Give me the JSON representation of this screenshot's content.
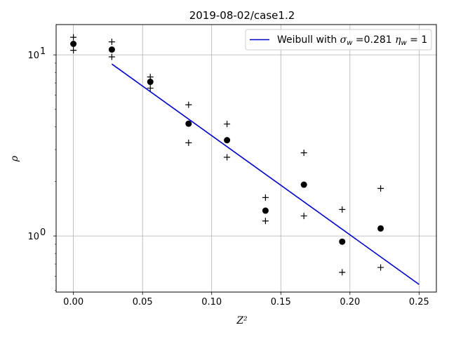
{
  "chart_data": {
    "type": "scatter",
    "title": "2019-08-02/case1.2",
    "xlabel": "Z²",
    "ylabel": "ρ",
    "y_scale": "log",
    "xlim": [
      -0.0125,
      0.2625
    ],
    "ylim": [
      0.49,
      14.7
    ],
    "x_ticks": [
      0.0,
      0.05,
      0.1,
      0.15,
      0.2,
      0.25
    ],
    "x_tick_labels": [
      "0.00",
      "0.05",
      "0.10",
      "0.15",
      "0.20",
      "0.25"
    ],
    "y_ticks": [
      1,
      10
    ],
    "grid": true,
    "legend_position": "top-right",
    "series": [
      {
        "kind": "points",
        "marker": "filled-circle",
        "color": "#000000",
        "x": [
          0.0,
          0.0278,
          0.0556,
          0.0833,
          0.1111,
          0.1389,
          0.1667,
          0.1944,
          0.2222
        ],
        "y": [
          11.5,
          10.7,
          7.1,
          4.17,
          3.38,
          1.38,
          1.92,
          0.93,
          1.1
        ]
      },
      {
        "kind": "points",
        "marker": "plus",
        "color": "#000000",
        "x": [
          0.0,
          0.0278,
          0.0556,
          0.0833,
          0.1111,
          0.1389,
          0.1667,
          0.1944,
          0.2222
        ],
        "y": [
          12.5,
          11.8,
          7.55,
          5.3,
          4.15,
          1.63,
          2.88,
          1.4,
          1.83
        ]
      },
      {
        "kind": "points",
        "marker": "plus",
        "color": "#000000",
        "x": [
          0.0,
          0.0278,
          0.0556,
          0.0833,
          0.1111,
          0.1389,
          0.1667,
          0.1944,
          0.2222
        ],
        "y": [
          10.6,
          9.75,
          6.55,
          3.27,
          2.72,
          1.21,
          1.29,
          0.63,
          0.67
        ]
      },
      {
        "kind": "line",
        "name": "Weibull with σ_w =0.281 η_w = 1",
        "color": "#0000cc",
        "x": [
          0.0278,
          0.25
        ],
        "y": [
          8.9,
          0.54
        ]
      }
    ],
    "legend": {
      "entries": [
        {
          "text_prefix": "Weibull with ",
          "sigma": "σ",
          "sigma_sub": "w",
          "middle": " =0.281 ",
          "eta": "η",
          "eta_sub": "w",
          "suffix": " = 1"
        }
      ]
    }
  }
}
